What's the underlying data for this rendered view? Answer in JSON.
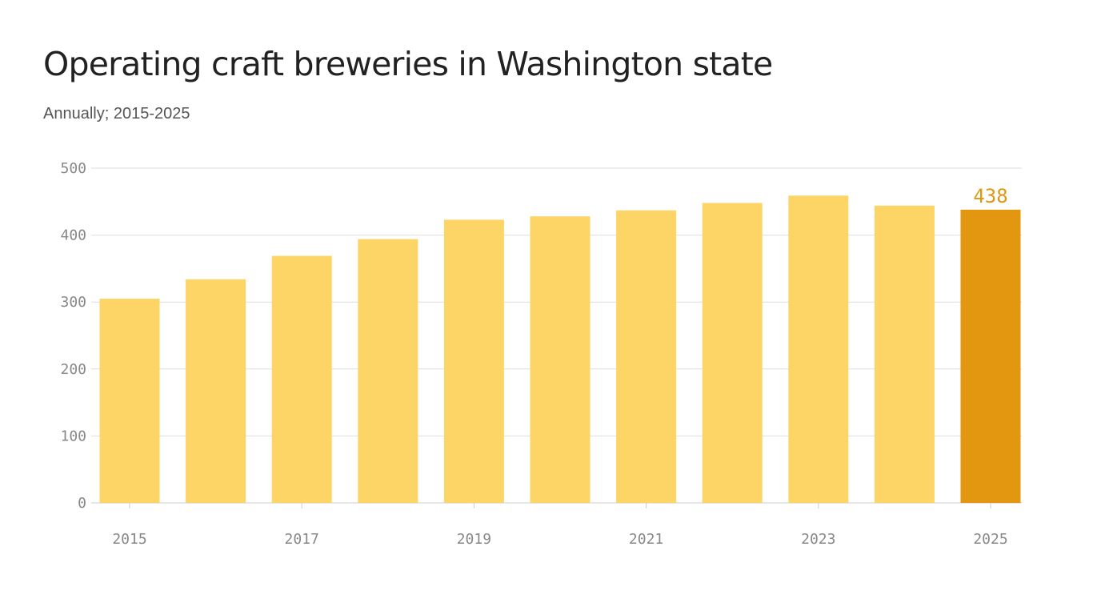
{
  "title": "Operating craft breweries in Washington state",
  "subtitle": "Annually; 2015-2025",
  "colors": {
    "bar": "#fdd466",
    "highlight": "#e3960f",
    "grid": "#dedede",
    "tick_text": "#888888",
    "axis": "#cccccc"
  },
  "chart_data": {
    "type": "bar",
    "title": "Operating craft breweries in Washington state",
    "subtitle": "Annually; 2015-2025",
    "xlabel": "",
    "ylabel": "",
    "categories": [
      "2015",
      "2016",
      "2017",
      "2018",
      "2019",
      "2020",
      "2021",
      "2022",
      "2023",
      "2024",
      "2025"
    ],
    "values": [
      305,
      334,
      369,
      394,
      423,
      428,
      437,
      448,
      459,
      444,
      438
    ],
    "x_tick_labels": [
      "2015",
      "2017",
      "2019",
      "2021",
      "2023",
      "2025"
    ],
    "y_ticks": [
      0,
      100,
      200,
      300,
      400,
      500
    ],
    "ylim": [
      0,
      500
    ],
    "grid": true,
    "legend": "none",
    "highlight_category": "2025",
    "annotation": {
      "category": "2025",
      "text": "438"
    }
  }
}
